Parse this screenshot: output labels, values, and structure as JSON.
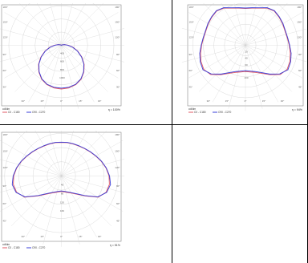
{
  "colors": {
    "c0": "#e05a66",
    "c90": "#3a3fd8",
    "grid": "#cfcfcf",
    "frame": "#888888"
  },
  "chart_data": [
    {
      "type": "polar",
      "angle_labels_left": [
        "180°",
        "150°",
        "120°",
        "90°",
        "60°",
        "30°"
      ],
      "angle_labels_right": [
        "180°",
        "150°",
        "120°",
        "90°",
        "60°",
        "30°"
      ],
      "bottom_angle_labels": [
        "30°",
        "15°",
        "0°",
        "15°",
        "30°"
      ],
      "radial_labels": [
        "400",
        "600",
        "800",
        "1000"
      ],
      "rlim": [
        0,
        1200
      ],
      "legend_title": "cd/klm",
      "series": [
        {
          "name": "C0 - C180",
          "color": "#e05a66",
          "angles": [
            0,
            10,
            20,
            30,
            40,
            50,
            60,
            70,
            80,
            90,
            100,
            110,
            120,
            130,
            140,
            150,
            160,
            170,
            180
          ],
          "values": [
            1000,
            990,
            960,
            900,
            800,
            680,
            540,
            400,
            270,
            160,
            80,
            30,
            0,
            0,
            0,
            0,
            0,
            0,
            0
          ]
        },
        {
          "name": "C90 - C270",
          "color": "#3a3fd8",
          "angles": [
            0,
            10,
            20,
            30,
            40,
            50,
            60,
            70,
            80,
            90,
            100,
            110,
            120,
            130,
            140,
            150,
            160,
            170,
            180
          ],
          "values": [
            980,
            975,
            950,
            890,
            790,
            670,
            530,
            390,
            260,
            150,
            70,
            25,
            0,
            0,
            0,
            0,
            0,
            0,
            0
          ]
        }
      ],
      "efficiency": "η = 100%"
    },
    {
      "type": "polar",
      "angle_labels_left": [
        "180°",
        "150°",
        "120°",
        "90°",
        "60°",
        "45°"
      ],
      "angle_labels_right": [
        "180°",
        "150°",
        "120°",
        "90°",
        "60°",
        "45°"
      ],
      "bottom_angle_labels": [
        "30°",
        "15°",
        "0°",
        "15°",
        "30°"
      ],
      "radial_labels": [
        "20",
        "40",
        "60",
        "80",
        "100"
      ],
      "rlim": [
        0,
        120
      ],
      "legend_title": "cd/klm",
      "series": [
        {
          "name": "C0 - C180",
          "color": "#e05a66",
          "angles": [
            0,
            10,
            20,
            30,
            40,
            50,
            60,
            70,
            80,
            90,
            100,
            110,
            120,
            130,
            140,
            150,
            160,
            170,
            180
          ],
          "values": [
            60,
            62,
            66,
            74,
            88,
            104,
            110,
            108,
            104,
            100,
            97,
            96,
            98,
            100,
            102,
            98,
            90,
            86,
            84
          ]
        },
        {
          "name": "C90 - C270",
          "color": "#3a3fd8",
          "angles": [
            0,
            10,
            20,
            30,
            40,
            50,
            60,
            70,
            80,
            90,
            100,
            110,
            120,
            130,
            140,
            150,
            160,
            170,
            180
          ],
          "values": [
            58,
            60,
            64,
            72,
            86,
            102,
            112,
            110,
            106,
            101,
            98,
            97,
            99,
            101,
            103,
            99,
            91,
            87,
            85
          ]
        }
      ],
      "efficiency": "η = 94%"
    },
    {
      "type": "polar",
      "angle_labels_left": [
        "180°",
        "150°",
        "120°",
        "90°",
        "60°",
        "45°"
      ],
      "angle_labels_right": [
        "180°",
        "150°",
        "120°",
        "90°",
        "60°",
        "45°"
      ],
      "bottom_angle_labels": [
        "30°",
        "15°",
        "0°",
        "15°",
        "30°"
      ],
      "radial_labels": [
        "40",
        "80",
        "120",
        "160"
      ],
      "rlim": [
        0,
        200
      ],
      "legend_title": "cd/klm",
      "series": [
        {
          "name": "C0 - C180",
          "color": "#e05a66",
          "angles": [
            0,
            10,
            20,
            30,
            40,
            50,
            60,
            70,
            80,
            90,
            100,
            110,
            120,
            130,
            140,
            150,
            160,
            170,
            180
          ],
          "values": [
            55,
            57,
            62,
            70,
            84,
            110,
            150,
            168,
            172,
            168,
            160,
            150,
            140,
            132,
            126,
            122,
            120,
            119,
            118
          ]
        },
        {
          "name": "C90 - C270",
          "color": "#3a3fd8",
          "angles": [
            0,
            10,
            20,
            30,
            40,
            50,
            60,
            70,
            80,
            90,
            100,
            110,
            120,
            130,
            140,
            150,
            160,
            170,
            180
          ],
          "values": [
            53,
            55,
            60,
            68,
            82,
            108,
            148,
            170,
            176,
            170,
            161,
            151,
            141,
            133,
            127,
            123,
            121,
            120,
            119
          ]
        }
      ],
      "efficiency": "η = 51%"
    }
  ]
}
